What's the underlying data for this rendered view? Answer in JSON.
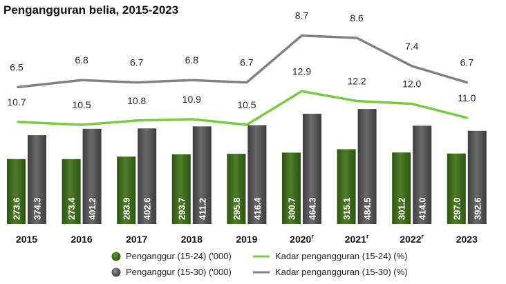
{
  "chart_data": {
    "type": "bar+line",
    "title": "Pengangguran belia, 2015-2023",
    "categories": [
      {
        "year": "2015",
        "mark": ""
      },
      {
        "year": "2016",
        "mark": ""
      },
      {
        "year": "2017",
        "mark": ""
      },
      {
        "year": "2018",
        "mark": ""
      },
      {
        "year": "2019",
        "mark": ""
      },
      {
        "year": "2020",
        "mark": "r"
      },
      {
        "year": "2021",
        "mark": "r"
      },
      {
        "year": "2022",
        "mark": "r"
      },
      {
        "year": "2023",
        "mark": ""
      }
    ],
    "bar_series": [
      {
        "name": "Penganggur (15-24) ('000)",
        "color": "#3f6b1e",
        "values": [
          "273.6",
          "273.4",
          "283.9",
          "293.7",
          "295.8",
          "300.7",
          "315.1",
          "301.2",
          "297.0"
        ]
      },
      {
        "name": "Penganggur (15-30) ('000)",
        "color": "#5b5b5b",
        "values": [
          "374.3",
          "401.2",
          "402.6",
          "411.2",
          "416.4",
          "464.3",
          "484.5",
          "414.0",
          "392.6"
        ]
      }
    ],
    "line_series": [
      {
        "name": "Kadar pengangguran (15-24) (%)",
        "color": "#7ac943",
        "values": [
          "10.7",
          "10.5",
          "10.8",
          "10.9",
          "10.5",
          "12.9",
          "12.2",
          "12.0",
          "11.0"
        ]
      },
      {
        "name": "Kadar pengangguran (15-30) (%)",
        "color": "#808080",
        "values": [
          "6.5",
          "6.8",
          "6.7",
          "6.8",
          "6.7",
          "8.7",
          "8.6",
          "7.4",
          "6.7"
        ]
      }
    ],
    "legend": [
      {
        "label": "Penganggur (15-24) ('000)",
        "symbol": "circle",
        "color": "#3f6b1e"
      },
      {
        "label": "Kadar pengangguran (15-24) (%)",
        "symbol": "line",
        "color": "#7ac943"
      },
      {
        "label": "Penganggur (15-30) ('000)",
        "symbol": "circle",
        "color": "#5b5b5b"
      },
      {
        "label": "Kadar pengangguran (15-30) (%)",
        "symbol": "line",
        "color": "#808080"
      }
    ],
    "legend_position": "bottom"
  }
}
